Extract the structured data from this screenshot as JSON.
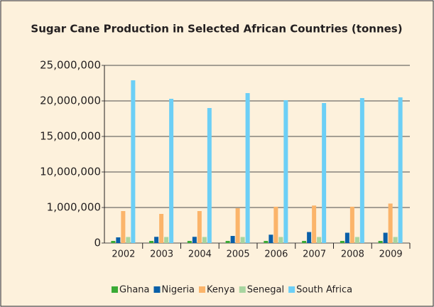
{
  "chart_data": {
    "type": "bar",
    "title": "Sugar Cane Production in Selected African Countries (tonnes)",
    "categories": [
      "2002",
      "2003",
      "2004",
      "2005",
      "2006",
      "2007",
      "2008",
      "2009"
    ],
    "series": [
      {
        "name": "Ghana",
        "color": "#3aaa35",
        "values": [
          60000,
          60000,
          60000,
          60000,
          60000,
          60000,
          60000,
          60000
        ]
      },
      {
        "name": "Nigeria",
        "color": "#0a5fa8",
        "values": [
          160000,
          175000,
          175000,
          200000,
          235000,
          310000,
          290000,
          290000
        ]
      },
      {
        "name": "Kenya",
        "color": "#fbb46a",
        "values": [
          900000,
          820000,
          900000,
          980000,
          1200000,
          1500000,
          1200000,
          2000000
        ]
      },
      {
        "name": "Senegal",
        "color": "#a8d5a0",
        "values": [
          170000,
          170000,
          170000,
          170000,
          170000,
          170000,
          170000,
          170000
        ]
      },
      {
        "name": "South Africa",
        "color": "#6ccff6",
        "values": [
          22900000,
          20300000,
          19000000,
          21100000,
          20100000,
          19700000,
          20400000,
          20500000
        ]
      }
    ],
    "ylim": [
      0,
      25000000
    ],
    "yticks": [
      0,
      {
        "value": 1000000,
        "label": "1,000,000"
      },
      {
        "value": 10000000,
        "label": "10,000,000"
      },
      {
        "value": 15000000,
        "label": "15,000,000"
      },
      {
        "value": 20000000,
        "label": "20,000,000"
      },
      {
        "value": 25000000,
        "label": "25,000,000"
      }
    ],
    "grid": true
  }
}
